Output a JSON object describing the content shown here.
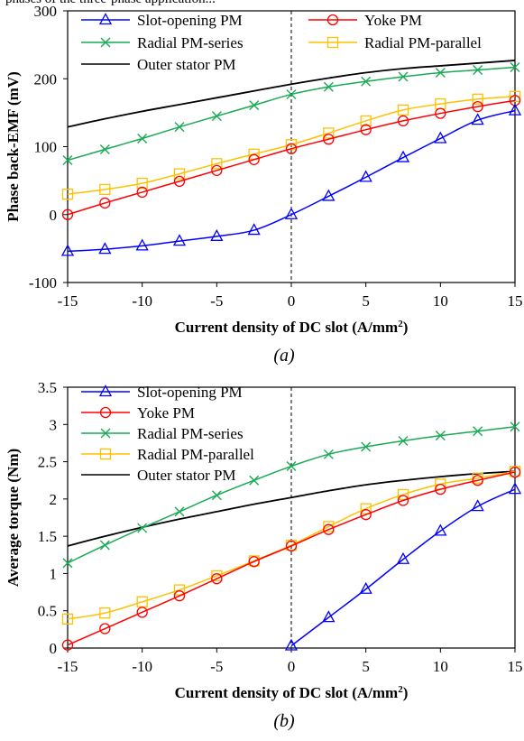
{
  "header_fragment": "phases of the three-phase application...",
  "chart_data": [
    {
      "type": "line",
      "caption": "(a)",
      "xlabel": "Current density of DC slot (A/mm²)",
      "ylabel": "Phase back-EMF (mV)",
      "xlim": [
        -15,
        15
      ],
      "ylim": [
        -100,
        300
      ],
      "xticks": [
        -15,
        -10,
        -5,
        0,
        5,
        10,
        15
      ],
      "yticks": [
        -100,
        0,
        100,
        200,
        300
      ],
      "grid": false,
      "legend_position": "top, two columns",
      "vline_x": 0,
      "series": [
        {
          "name": "Slot-opening PM",
          "color": "#0000ff",
          "marker": "triangle",
          "x": [
            -15,
            -12.5,
            -10,
            -7.5,
            -5,
            -2.5,
            0,
            2.5,
            5,
            7.5,
            10,
            12.5,
            15
          ],
          "y": [
            -54,
            -51,
            -46,
            -39,
            -32,
            -23,
            0,
            27,
            55,
            84,
            112,
            139,
            153
          ]
        },
        {
          "name": "Yoke PM",
          "color": "#ff0000",
          "marker": "circle",
          "x": [
            -15,
            -12.5,
            -10,
            -7.5,
            -5,
            -2.5,
            0,
            2.5,
            5,
            7.5,
            10,
            12.5,
            15
          ],
          "y": [
            0,
            17,
            33,
            49,
            65,
            81,
            97,
            111,
            125,
            138,
            149,
            159,
            168
          ]
        },
        {
          "name": "Radial PM-series",
          "color": "#1aaa55",
          "marker": "x",
          "x": [
            -15,
            -12.5,
            -10,
            -7.5,
            -5,
            -2.5,
            0,
            2.5,
            5,
            7.5,
            10,
            12.5,
            15
          ],
          "y": [
            80,
            96,
            112,
            129,
            145,
            161,
            177,
            188,
            196,
            203,
            209,
            213,
            217
          ]
        },
        {
          "name": "Radial PM-parallel",
          "color": "#ffc000",
          "marker": "square",
          "x": [
            -15,
            -12.5,
            -10,
            -7.5,
            -5,
            -2.5,
            0,
            2.5,
            5,
            7.5,
            10,
            12.5,
            15
          ],
          "y": [
            30,
            37,
            46,
            60,
            75,
            89,
            103,
            120,
            138,
            154,
            163,
            170,
            174
          ]
        },
        {
          "name": "Outer stator PM",
          "color": "#000000",
          "marker": "none",
          "x": [
            -15,
            -12.5,
            -10,
            -7.5,
            -5,
            -2.5,
            0,
            2.5,
            5,
            7.5,
            10,
            12.5,
            15
          ],
          "y": [
            129,
            141,
            152,
            162,
            172,
            182,
            192,
            201,
            209,
            215,
            219,
            223,
            227
          ]
        }
      ]
    },
    {
      "type": "line",
      "caption": "(b)",
      "xlabel": "Current density of DC slot (A/mm²)",
      "ylabel": "Average torque (Nm)",
      "xlim": [
        -15,
        15
      ],
      "ylim": [
        0,
        3.5
      ],
      "xticks": [
        -15,
        -10,
        -5,
        0,
        5,
        10,
        15
      ],
      "yticks": [
        0,
        0.5,
        1,
        1.5,
        2,
        2.5,
        3,
        3.5
      ],
      "grid": false,
      "legend_position": "top-left",
      "vline_x": 0,
      "series": [
        {
          "name": "Slot-opening PM",
          "color": "#0000ff",
          "marker": "triangle",
          "x": [
            0,
            2.5,
            5,
            7.5,
            10,
            12.5,
            15
          ],
          "y": [
            0.03,
            0.41,
            0.79,
            1.19,
            1.57,
            1.9,
            2.13
          ]
        },
        {
          "name": "Yoke PM",
          "color": "#ff0000",
          "marker": "circle",
          "x": [
            -15,
            -12.5,
            -10,
            -7.5,
            -5,
            -2.5,
            0,
            2.5,
            5,
            7.5,
            10,
            12.5,
            15
          ],
          "y": [
            0.04,
            0.26,
            0.48,
            0.7,
            0.93,
            1.16,
            1.37,
            1.59,
            1.79,
            1.98,
            2.13,
            2.25,
            2.36
          ]
        },
        {
          "name": "Radial PM-series",
          "color": "#1aaa55",
          "marker": "x",
          "x": [
            -15,
            -12.5,
            -10,
            -7.5,
            -5,
            -2.5,
            0,
            2.5,
            5,
            7.5,
            10,
            12.5,
            15
          ],
          "y": [
            1.14,
            1.38,
            1.61,
            1.83,
            2.05,
            2.25,
            2.44,
            2.6,
            2.7,
            2.78,
            2.85,
            2.91,
            2.97
          ]
        },
        {
          "name": "Radial PM-parallel",
          "color": "#ffc000",
          "marker": "square",
          "x": [
            -15,
            -12.5,
            -10,
            -7.5,
            -5,
            -2.5,
            0,
            2.5,
            5,
            7.5,
            10,
            12.5,
            15
          ],
          "y": [
            0.39,
            0.47,
            0.62,
            0.78,
            0.97,
            1.17,
            1.38,
            1.63,
            1.87,
            2.06,
            2.2,
            2.28,
            2.37
          ]
        },
        {
          "name": "Outer stator PM",
          "color": "#000000",
          "marker": "none",
          "x": [
            -15,
            -12.5,
            -10,
            -7.5,
            -5,
            -2.5,
            0,
            2.5,
            5,
            7.5,
            10,
            12.5,
            15
          ],
          "y": [
            1.37,
            1.5,
            1.62,
            1.73,
            1.83,
            1.93,
            2.02,
            2.11,
            2.19,
            2.25,
            2.3,
            2.34,
            2.37
          ]
        }
      ]
    }
  ]
}
